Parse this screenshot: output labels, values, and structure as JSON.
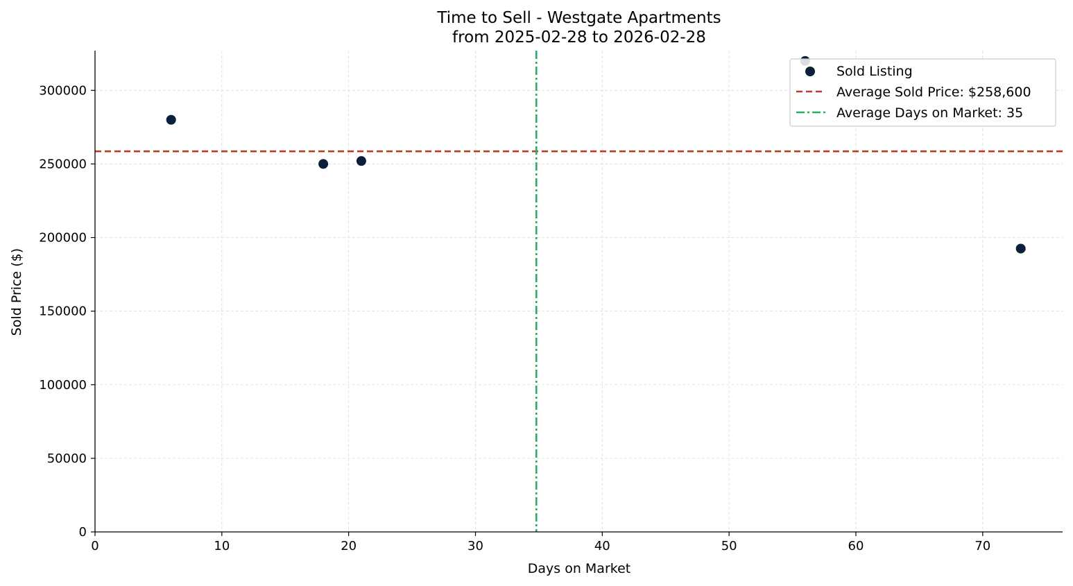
{
  "chart_data": {
    "type": "scatter",
    "title": "Time to Sell - Westgate Apartments",
    "subtitle": "from 2025-02-28 to 2026-02-28",
    "xlabel": "Days on Market",
    "ylabel": "Sold Price ($)",
    "xlim": [
      0,
      76.3
    ],
    "ylim": [
      0,
      327000
    ],
    "xticks": [
      0,
      10,
      20,
      30,
      40,
      50,
      60,
      70
    ],
    "yticks": [
      0,
      50000,
      100000,
      150000,
      200000,
      250000,
      300000
    ],
    "grid": true,
    "legend_position": "top-right",
    "series": [
      {
        "name": "Sold Listing",
        "color": "#0b1f3a",
        "points": [
          {
            "x": 6,
            "y": 280000
          },
          {
            "x": 18,
            "y": 250000
          },
          {
            "x": 21,
            "y": 252000
          },
          {
            "x": 56,
            "y": 320000
          },
          {
            "x": 73,
            "y": 192500
          }
        ]
      }
    ],
    "reference_lines": [
      {
        "name": "Average Sold Price: $258,600",
        "orientation": "horizontal",
        "value": 258600,
        "color": "#c0392b",
        "style": "dashed"
      },
      {
        "name": "Average Days on Market: 35",
        "orientation": "vertical",
        "value": 34.8,
        "color": "#27ae60",
        "style": "dashdot"
      }
    ]
  }
}
